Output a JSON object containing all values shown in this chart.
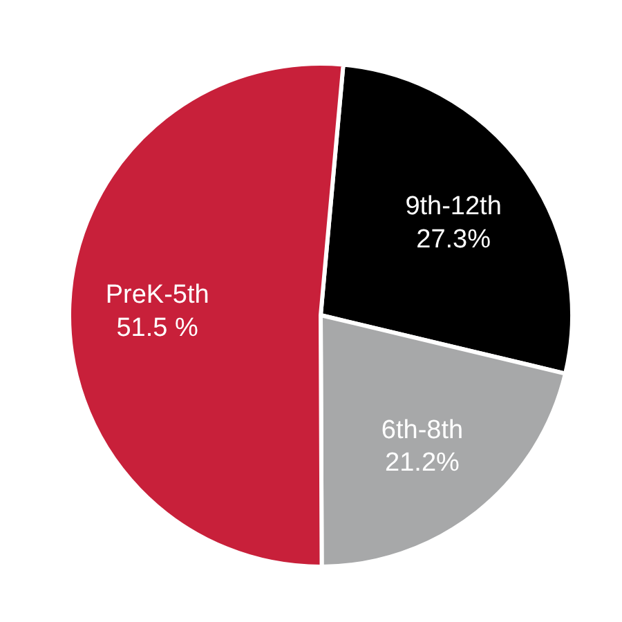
{
  "chart_data": {
    "type": "pie",
    "categories": [
      "9th-12th",
      "6th-8th",
      "PreK-5th"
    ],
    "values": [
      27.3,
      21.2,
      51.5
    ],
    "colors": [
      "#000000",
      "#a7a8a9",
      "#c8203a"
    ],
    "value_labels": [
      "27.3%",
      "21.2%",
      "51.5 %"
    ]
  }
}
